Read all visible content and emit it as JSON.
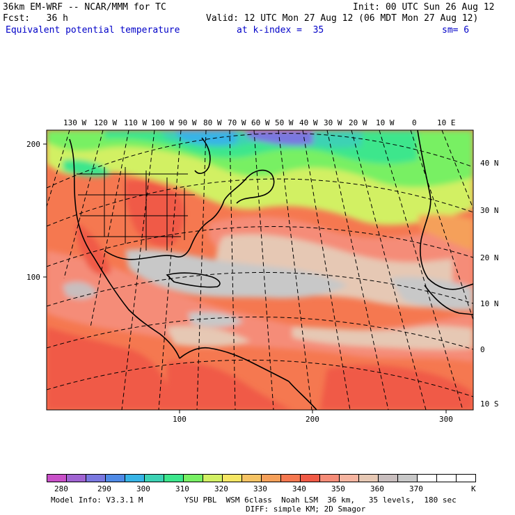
{
  "header": {
    "model_line": "36km EM-WRF -- NCAR/MMM for TC",
    "init_line": "Init: 00 UTC Sun 26 Aug 12",
    "fcst_line": "Fcst:   36 h",
    "valid_line": "Valid: 12 UTC Mon 27 Aug 12 (06 MDT Mon 27 Aug 12)",
    "field_name": "Equivalent potential temperature",
    "level": "at k-index =  35",
    "smoothing": "sm= 6"
  },
  "map": {
    "top_lon_labels": [
      "130 W",
      "120 W",
      "110 W",
      "100 W",
      "90 W",
      "80 W",
      "70 W",
      "60 W",
      "50 W",
      "40 W",
      "30 W",
      "20 W",
      "10 W",
      "0",
      "10 E"
    ],
    "right_lat_labels": [
      "40 N",
      "30 N",
      "20 N",
      "10 N",
      "0",
      "10 S"
    ],
    "left_axis_labels": [
      "200",
      "100"
    ],
    "bottom_axis_labels": [
      "100",
      "200",
      "300"
    ]
  },
  "colorbar": {
    "labels": [
      "280",
      "290",
      "300",
      "310",
      "320",
      "330",
      "340",
      "350",
      "360",
      "370",
      "K"
    ],
    "colors": [
      "#c850c8",
      "#a064d2",
      "#7a78e0",
      "#4f8ae6",
      "#37b4e6",
      "#3cd2b4",
      "#3ce68c",
      "#78f064",
      "#d2f064",
      "#f5e664",
      "#f5c364",
      "#f5a05a",
      "#f57850",
      "#f05a46",
      "#f58c78",
      "#f5b4a0",
      "#e6c8b4",
      "#c8bebe",
      "#c8c8c8",
      "#ffffff",
      "#ffffff",
      "#ffffff"
    ]
  },
  "footer": {
    "model_info": "Model Info: V3.3.1 M",
    "physics": "YSU PBL  WSM 6class  Noah LSM  36 km,   35 levels,  180 sec",
    "diffusion": "DIFF: simple KM; 2D Smagor"
  }
}
